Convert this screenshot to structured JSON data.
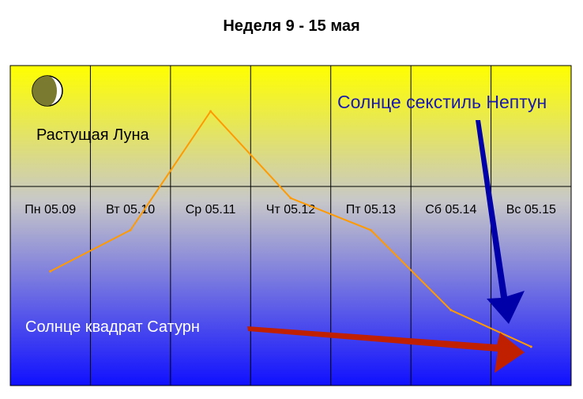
{
  "chart_data": {
    "type": "line",
    "title": "Неделя 9 - 15 мая",
    "categories": [
      "Пн 05.09",
      "Вт 05.10",
      "Ср 05.11",
      "Чт 05.12",
      "Пт 05.13",
      "Сб 05.14",
      "Вс 05.15"
    ],
    "values": [
      5.0,
      6.8,
      12.0,
      8.2,
      6.8,
      3.3,
      1.7
    ],
    "ylim": [
      0,
      14
    ],
    "grid": true,
    "series_color": "#ff9a00",
    "background_colors": {
      "top": "#ffff00",
      "middle": "#c8c8c8",
      "bottom": "#1010ff"
    },
    "annotations": {
      "moon_phase": "Растущая Луна",
      "sextile": "Солнце секстиль Нептун",
      "square": "Солнце квадрат Сатурн"
    },
    "annotation_colors": {
      "sextile_text": "#1a1ab0",
      "sextile_arrow": "#0000a8",
      "square_text": "#ffffff",
      "square_arrow": "#c02000"
    },
    "icons": {
      "moon": "waxing-moon-icon"
    }
  }
}
